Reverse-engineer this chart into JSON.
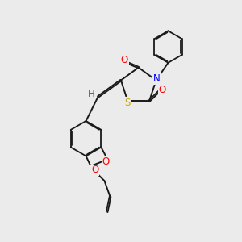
{
  "background_color": "#ebebeb",
  "bond_color": "#1a1a1a",
  "atom_colors": {
    "O": "#ff0000",
    "N": "#0000ff",
    "S": "#ccaa00",
    "H": "#008888",
    "C": "#1a1a1a"
  },
  "figsize": [
    3.0,
    3.0
  ],
  "dpi": 100
}
